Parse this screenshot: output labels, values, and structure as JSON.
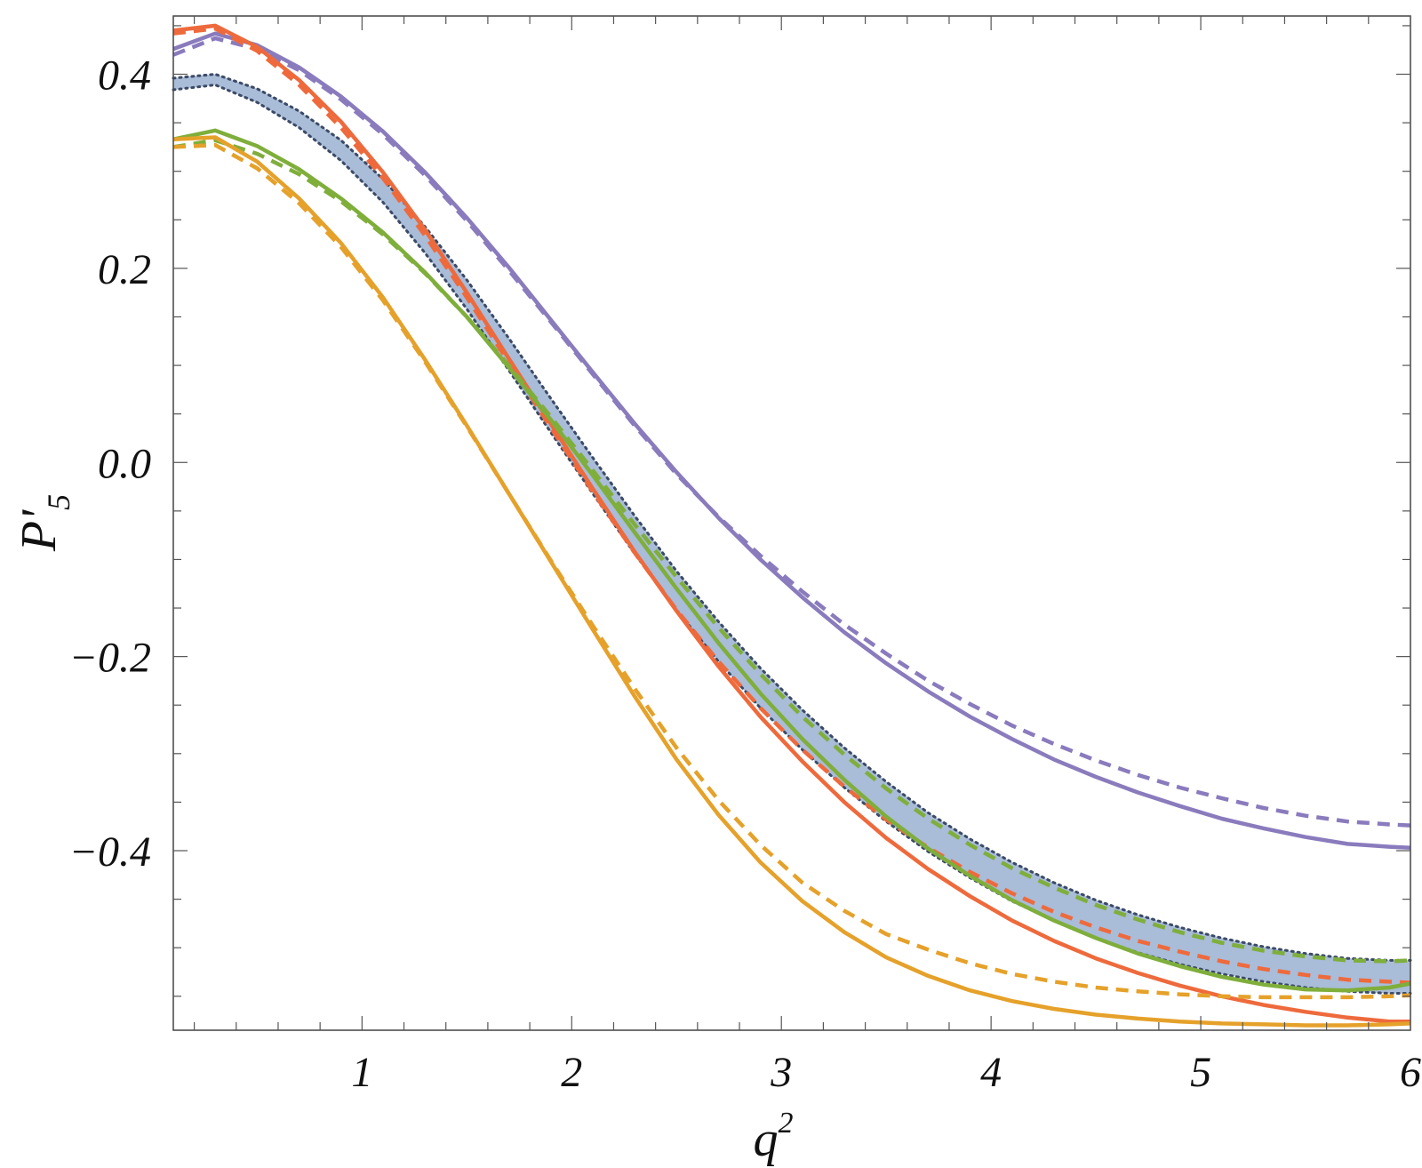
{
  "chart_data": {
    "type": "line",
    "xlabel": "q",
    "xlabel_sup": "2",
    "ylabel": "P'",
    "ylabel_sub": "5",
    "xlim": [
      0.1,
      6.0
    ],
    "ylim": [
      -0.585,
      0.46
    ],
    "xticks": [
      1,
      2,
      3,
      4,
      5,
      6
    ],
    "xtick_labels": [
      "1",
      "2",
      "3",
      "4",
      "5",
      "6"
    ],
    "yticks": [
      0.4,
      0.2,
      0.0,
      -0.2,
      -0.4
    ],
    "ytick_labels": [
      "0.4",
      "0.2",
      "0.0",
      "−0.2",
      "−0.4"
    ],
    "grid": false,
    "legend": "none",
    "band": {
      "color": "#a9bcd8",
      "edge_color": "#3b4a66",
      "x": [
        0.1,
        0.3,
        0.5,
        0.7,
        0.9,
        1.1,
        1.3,
        1.5,
        1.7,
        1.9,
        2.1,
        2.3,
        2.5,
        2.7,
        2.9,
        3.1,
        3.3,
        3.5,
        3.7,
        3.9,
        4.1,
        4.3,
        4.5,
        4.7,
        4.9,
        5.1,
        5.3,
        5.5,
        5.7,
        5.9,
        6.0
      ],
      "upper": [
        0.396,
        0.4,
        0.385,
        0.362,
        0.332,
        0.292,
        0.243,
        0.188,
        0.128,
        0.066,
        0.005,
        -0.055,
        -0.112,
        -0.164,
        -0.212,
        -0.255,
        -0.294,
        -0.329,
        -0.361,
        -0.388,
        -0.412,
        -0.433,
        -0.451,
        -0.466,
        -0.479,
        -0.49,
        -0.499,
        -0.506,
        -0.511,
        -0.513,
        -0.513
      ],
      "lower": [
        0.384,
        0.389,
        0.371,
        0.345,
        0.311,
        0.268,
        0.216,
        0.158,
        0.095,
        0.031,
        -0.032,
        -0.094,
        -0.152,
        -0.205,
        -0.253,
        -0.296,
        -0.335,
        -0.37,
        -0.401,
        -0.428,
        -0.452,
        -0.472,
        -0.49,
        -0.505,
        -0.517,
        -0.527,
        -0.535,
        -0.541,
        -0.545,
        -0.547,
        -0.547
      ]
    },
    "series": [
      {
        "color": "#8a7bbd",
        "style": "solid",
        "x": [
          0.1,
          0.3,
          0.5,
          0.7,
          0.9,
          1.1,
          1.3,
          1.5,
          1.7,
          1.9,
          2.1,
          2.3,
          2.5,
          2.7,
          2.9,
          3.1,
          3.3,
          3.5,
          3.7,
          3.9,
          4.1,
          4.3,
          4.5,
          4.7,
          4.9,
          5.1,
          5.3,
          5.5,
          5.7,
          5.9,
          6.0
        ],
        "values": [
          0.426,
          0.442,
          0.43,
          0.407,
          0.377,
          0.341,
          0.299,
          0.252,
          0.201,
          0.147,
          0.093,
          0.04,
          -0.01,
          -0.057,
          -0.1,
          -0.139,
          -0.175,
          -0.207,
          -0.236,
          -0.262,
          -0.285,
          -0.306,
          -0.324,
          -0.34,
          -0.354,
          -0.367,
          -0.377,
          -0.386,
          -0.393,
          -0.396,
          -0.397
        ]
      },
      {
        "color": "#8a7bbd",
        "style": "dashed",
        "x": [
          0.1,
          0.3,
          0.5,
          0.7,
          0.9,
          1.1,
          1.3,
          1.5,
          1.7,
          1.9,
          2.1,
          2.3,
          2.5,
          2.7,
          2.9,
          3.1,
          3.3,
          3.5,
          3.7,
          3.9,
          4.1,
          4.3,
          4.5,
          4.7,
          4.9,
          5.1,
          5.3,
          5.5,
          5.7,
          5.9,
          6.0
        ],
        "values": [
          0.42,
          0.437,
          0.426,
          0.404,
          0.374,
          0.338,
          0.296,
          0.249,
          0.198,
          0.145,
          0.091,
          0.038,
          -0.012,
          -0.056,
          -0.096,
          -0.133,
          -0.167,
          -0.197,
          -0.225,
          -0.249,
          -0.271,
          -0.29,
          -0.307,
          -0.322,
          -0.335,
          -0.346,
          -0.356,
          -0.364,
          -0.37,
          -0.373,
          -0.374
        ]
      },
      {
        "color": "#ee6a3c",
        "style": "solid",
        "x": [
          0.1,
          0.3,
          0.5,
          0.7,
          0.9,
          1.1,
          1.3,
          1.5,
          1.7,
          1.9,
          2.1,
          2.3,
          2.5,
          2.7,
          2.9,
          3.1,
          3.3,
          3.5,
          3.7,
          3.9,
          4.1,
          4.3,
          4.5,
          4.7,
          4.9,
          5.1,
          5.3,
          5.5,
          5.7,
          5.9,
          6.0
        ],
        "values": [
          0.445,
          0.45,
          0.428,
          0.394,
          0.351,
          0.299,
          0.24,
          0.175,
          0.107,
          0.04,
          -0.027,
          -0.092,
          -0.153,
          -0.21,
          -0.262,
          -0.308,
          -0.35,
          -0.387,
          -0.419,
          -0.447,
          -0.472,
          -0.493,
          -0.511,
          -0.526,
          -0.539,
          -0.55,
          -0.559,
          -0.566,
          -0.572,
          -0.576,
          -0.576
        ]
      },
      {
        "color": "#ee6a3c",
        "style": "dashed",
        "x": [
          0.1,
          0.3,
          0.5,
          0.7,
          0.9,
          1.1,
          1.3,
          1.5,
          1.7,
          1.9,
          2.1,
          2.3,
          2.5,
          2.7,
          2.9,
          3.1,
          3.3,
          3.5,
          3.7,
          3.9,
          4.1,
          4.3,
          4.5,
          4.7,
          4.9,
          5.1,
          5.3,
          5.5,
          5.7,
          5.9,
          6.0
        ],
        "values": [
          0.442,
          0.447,
          0.424,
          0.389,
          0.345,
          0.293,
          0.234,
          0.17,
          0.103,
          0.036,
          -0.03,
          -0.093,
          -0.152,
          -0.205,
          -0.253,
          -0.296,
          -0.334,
          -0.368,
          -0.397,
          -0.422,
          -0.444,
          -0.463,
          -0.479,
          -0.493,
          -0.504,
          -0.514,
          -0.522,
          -0.528,
          -0.533,
          -0.535,
          -0.536
        ]
      },
      {
        "color": "#7fae3b",
        "style": "solid",
        "x": [
          0.1,
          0.3,
          0.5,
          0.7,
          0.9,
          1.1,
          1.3,
          1.5,
          1.7,
          1.9,
          2.1,
          2.3,
          2.5,
          2.7,
          2.9,
          3.1,
          3.3,
          3.5,
          3.7,
          3.9,
          4.1,
          4.3,
          4.5,
          4.7,
          4.9,
          5.1,
          5.3,
          5.5,
          5.7,
          5.9,
          6.0
        ],
        "values": [
          0.333,
          0.342,
          0.326,
          0.302,
          0.272,
          0.237,
          0.196,
          0.15,
          0.098,
          0.044,
          -0.013,
          -0.072,
          -0.13,
          -0.186,
          -0.238,
          -0.285,
          -0.327,
          -0.365,
          -0.398,
          -0.426,
          -0.451,
          -0.472,
          -0.49,
          -0.506,
          -0.519,
          -0.53,
          -0.538,
          -0.543,
          -0.544,
          -0.541,
          -0.537
        ]
      },
      {
        "color": "#7fae3b",
        "style": "dashed",
        "x": [
          0.1,
          0.3,
          0.5,
          0.7,
          0.9,
          1.1,
          1.3,
          1.5,
          1.7,
          1.9,
          2.1,
          2.3,
          2.5,
          2.7,
          2.9,
          3.1,
          3.3,
          3.5,
          3.7,
          3.9,
          4.1,
          4.3,
          4.5,
          4.7,
          4.9,
          5.1,
          5.3,
          5.5,
          5.7,
          5.9,
          6.0
        ],
        "values": [
          0.325,
          0.332,
          0.318,
          0.297,
          0.269,
          0.235,
          0.195,
          0.15,
          0.1,
          0.047,
          -0.008,
          -0.064,
          -0.118,
          -0.17,
          -0.218,
          -0.262,
          -0.301,
          -0.336,
          -0.367,
          -0.394,
          -0.418,
          -0.438,
          -0.456,
          -0.471,
          -0.484,
          -0.495,
          -0.503,
          -0.509,
          -0.513,
          -0.514,
          -0.513
        ]
      },
      {
        "color": "#e5a12a",
        "style": "solid",
        "x": [
          0.1,
          0.3,
          0.5,
          0.7,
          0.9,
          1.1,
          1.3,
          1.5,
          1.7,
          1.9,
          2.1,
          2.3,
          2.5,
          2.7,
          2.9,
          3.1,
          3.3,
          3.5,
          3.7,
          3.9,
          4.1,
          4.3,
          4.5,
          4.7,
          4.9,
          5.1,
          5.3,
          5.5,
          5.7,
          5.9,
          6.0
        ],
        "values": [
          0.333,
          0.335,
          0.31,
          0.272,
          0.226,
          0.17,
          0.106,
          0.038,
          -0.032,
          -0.102,
          -0.172,
          -0.241,
          -0.306,
          -0.363,
          -0.412,
          -0.452,
          -0.484,
          -0.51,
          -0.529,
          -0.544,
          -0.555,
          -0.563,
          -0.569,
          -0.573,
          -0.576,
          -0.578,
          -0.579,
          -0.58,
          -0.58,
          -0.579,
          -0.578
        ]
      },
      {
        "color": "#e5a12a",
        "style": "dashed",
        "x": [
          0.1,
          0.3,
          0.5,
          0.7,
          0.9,
          1.1,
          1.3,
          1.5,
          1.7,
          1.9,
          2.1,
          2.3,
          2.5,
          2.7,
          2.9,
          3.1,
          3.3,
          3.5,
          3.7,
          3.9,
          4.1,
          4.3,
          4.5,
          4.7,
          4.9,
          5.1,
          5.3,
          5.5,
          5.7,
          5.9,
          6.0
        ],
        "values": [
          0.325,
          0.327,
          0.303,
          0.267,
          0.222,
          0.167,
          0.104,
          0.037,
          -0.032,
          -0.101,
          -0.168,
          -0.233,
          -0.294,
          -0.348,
          -0.394,
          -0.433,
          -0.462,
          -0.486,
          -0.502,
          -0.516,
          -0.527,
          -0.535,
          -0.541,
          -0.545,
          -0.548,
          -0.55,
          -0.551,
          -0.551,
          -0.551,
          -0.55,
          -0.549
        ]
      }
    ]
  }
}
